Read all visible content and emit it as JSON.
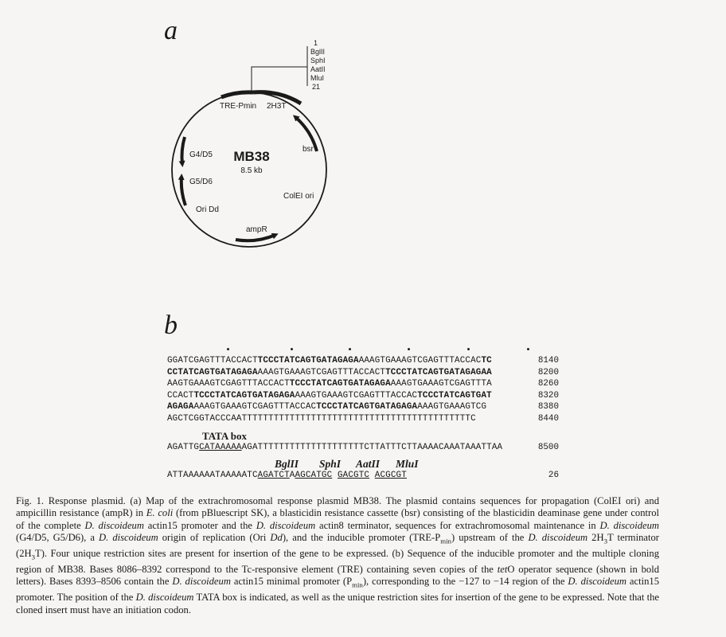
{
  "panel_a_label": "a",
  "panel_b_label": "b",
  "plasmid": {
    "name": "MB38",
    "size": "8.5 kb",
    "labels": {
      "tre": "TRE-Pmin",
      "term": "2H3T",
      "bsr": "bsr",
      "colei": "ColEI ori",
      "ampr": "ampR",
      "oridd": "Ori Dd",
      "g4d5": "G4/D5",
      "g5d6": "G5/D6"
    },
    "mcs": [
      "1",
      "BglII",
      "SphI",
      "AatII",
      "MluI",
      "21"
    ]
  },
  "sequence": {
    "lines": [
      {
        "segs": [
          {
            "t": "GGATCGAGTTTACCACT"
          },
          {
            "t": "TCCCTATCAGTGATAGAGA",
            "b": true
          },
          {
            "t": "AAAGTGAAAGTCGAGTTTACCAC"
          },
          {
            "t": "TC",
            "b": true
          }
        ],
        "num": "8140"
      },
      {
        "segs": [
          {
            "t": "CCTATCAGTGATAGAGA",
            "b": true
          },
          {
            "t": "AAAGTGAAAGTCGAGTTTACCACT"
          },
          {
            "t": "TCCCTATCAGTGATAGAGAA",
            "b": true
          }
        ],
        "num": "8200"
      },
      {
        "segs": [
          {
            "t": "AAGTGAAAGTCGAGTTTACCACT"
          },
          {
            "t": "TCCCTATCAGTGATAGAGA",
            "b": true
          },
          {
            "t": "AAAGTGAAAGTCGAGTTTA"
          }
        ],
        "num": "8260"
      },
      {
        "segs": [
          {
            "t": "CCACT"
          },
          {
            "t": "TCCCTATCAGTGATAGAGA",
            "b": true
          },
          {
            "t": "AAAGTGAAAGTCGAGTTTACCAC"
          },
          {
            "t": "TCCCTATCAGTGAT",
            "b": true
          }
        ],
        "num": "8320"
      },
      {
        "segs": [
          {
            "t": "AGAGA",
            "b": true
          },
          {
            "t": "AAAGTGAAAGTCGAGTTTACCAC"
          },
          {
            "t": "TCCCTATCAGTGATAGAGA",
            "b": true
          },
          {
            "t": "AAAGTGAAAGTCG"
          }
        ],
        "num": "8380"
      },
      {
        "segs": [
          {
            "t": "AGCTCGGTACCCAATTTTTTTTTTTTTTTTTTTTTTTTTTTTTTTTTTTTTTTTTTTC"
          }
        ],
        "num": "8440"
      }
    ],
    "tata_label": "TATA box",
    "tata_line": {
      "pre": "AGATTG",
      "tata": "CATAAAAA",
      "post": "AGATTTTTTTTTTTTTTTTTTTTCTTATTTCTTAAAACAAATAAATTAA",
      "num": "8500"
    },
    "sites": [
      "BglII",
      "SphI",
      "AatII",
      "MluI"
    ],
    "mcs_line": {
      "pre": "ATTAAAAAATAAAAATC",
      "s1": "AGATCT",
      "a": "A",
      "s2": "AGCATGC",
      "sp1": " ",
      "s3": "GACGTC",
      "sp2": " ",
      "s4": "ACGCGT",
      "num": "26"
    }
  },
  "caption": {
    "p1": "Fig. 1. Response plasmid. (a) Map of the extrachromosomal response plasmid MB38. The plasmid contains sequences for propagation (ColEI ori) and ampicillin resistance (ampR) in ",
    "e_coli": "E. coli",
    "p2": " (from pBluescript SK), a blasticidin resistance cassette (bsr) consisting of the blasticidin deaminase gene under control of the complete ",
    "dd1": "D. discoideum",
    "p3": " actin15 promoter and the ",
    "dd2": "D. discoideum",
    "p4": " actin8 terminator, sequences for extrachromosomal maintenance in ",
    "dd3": "D. discoideum",
    "p5": " (G4/D5, G5/D6), a ",
    "dd4": "D. discoideum",
    "p6": " origin of replication (Ori ",
    "dd5": "Dd",
    "p7": "), and the inducible promoter (TRE-P",
    "sub1": "min",
    "p8": ") upstream of the ",
    "dd6": "D. discoideum",
    "p9": " 2H",
    "sub2": "3",
    "p10": "T terminator (2H",
    "sub3": "3",
    "p11": "T). Four unique restriction sites are present for insertion of the gene to be expressed. (b) Sequence of the inducible promoter and the multiple cloning region of MB38. Bases 8086–8392 correspond to the Tc-responsive element (TRE) containing seven copies of the ",
    "teto": "tet",
    "p12": "O operator sequence (shown in bold letters). Bases 8393–8506 contain the ",
    "dd7": "D. discoideum",
    "p13": " actin15 minimal promoter (P",
    "sub4": "min",
    "p14": "), corresponding to the −127 to −14 region of the ",
    "dd8": "D. discoideum",
    "p15": " actin15 promoter. The position of the ",
    "dd9": "D. discoideum",
    "p16": " TATA box is indicated, as well as the unique restriction sites for insertion of the gene to be expressed. Note that the cloned insert must have an initiation codon."
  }
}
